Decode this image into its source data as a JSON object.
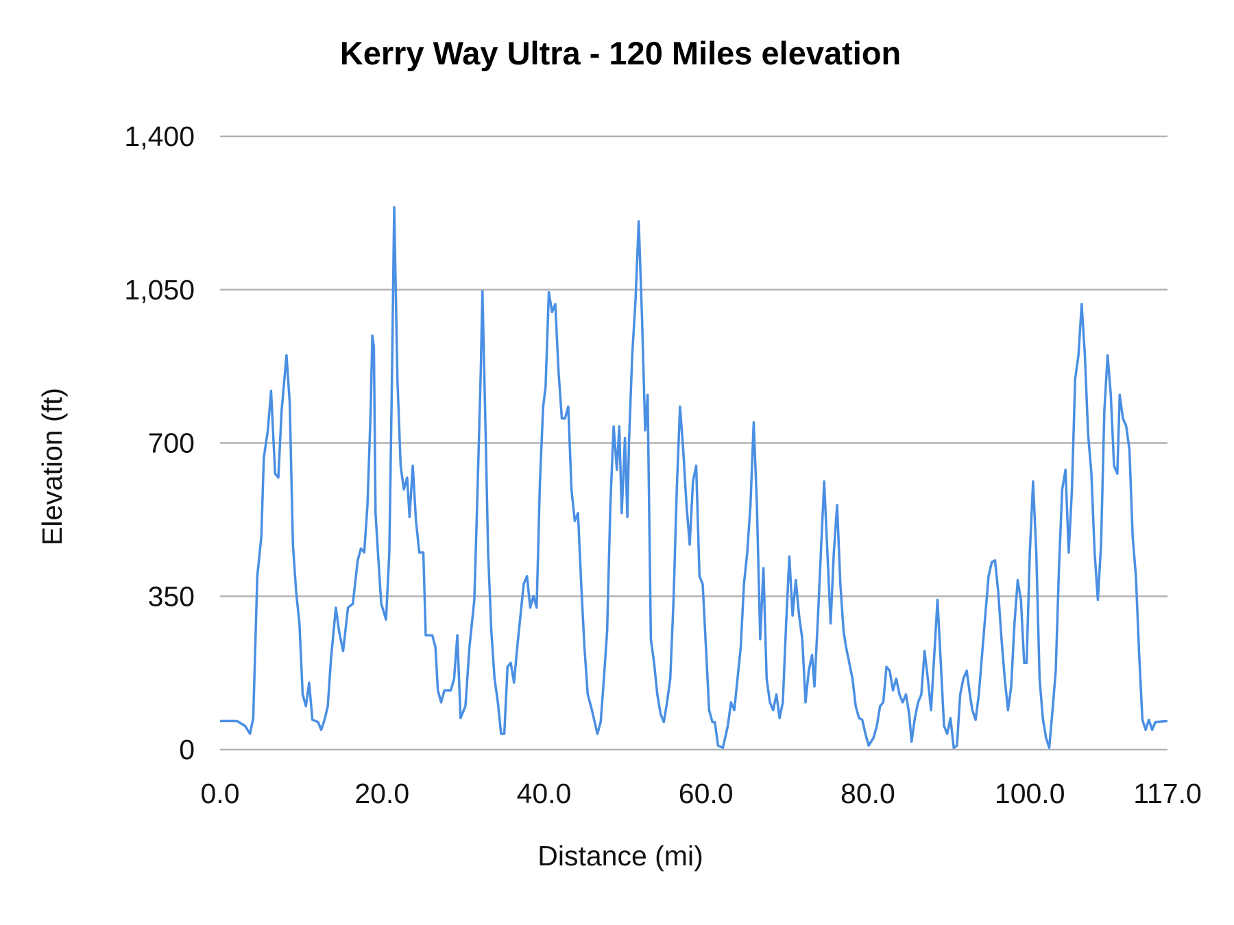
{
  "chart_data": {
    "type": "line",
    "title": "Kerry Way Ultra - 120 Miles elevation",
    "xlabel": "Distance (mi)",
    "ylabel": "Elevation (ft)",
    "xlim": [
      0,
      117
    ],
    "ylim": [
      0,
      1400
    ],
    "x_ticks": [
      "0.0",
      "20.0",
      "40.0",
      "60.0",
      "80.0",
      "100.0",
      "117.0"
    ],
    "x_tick_values": [
      0,
      20,
      40,
      60,
      80,
      100,
      117
    ],
    "y_ticks": [
      "0",
      "350",
      "700",
      "1,050",
      "1,400"
    ],
    "y_tick_values": [
      0,
      350,
      700,
      1050,
      1400
    ],
    "grid": "horizontal",
    "legend": "none",
    "colors": {
      "line": "#4a8fe3",
      "grid": "#b3b3b3"
    },
    "series": [
      {
        "x": [
          0,
          2.1,
          3.1,
          3.7,
          4.1,
          4.4,
          4.6,
          5.1,
          5.4,
          5.9,
          6.3,
          6.8,
          7.2,
          7.6,
          8.2,
          8.6,
          9.0,
          9.4,
          9.8,
          10.2,
          10.6,
          11.0,
          11.4,
          12.1,
          12.5,
          12.9,
          13.3,
          13.7,
          14.3,
          14.7,
          15.2,
          15.8,
          16.4,
          17.0,
          17.4,
          17.8,
          18.2,
          18.6,
          18.8,
          19.0,
          19.2,
          19.5,
          19.9,
          20.5,
          20.9,
          21.2,
          21.5,
          21.9,
          22.3,
          22.7,
          23.1,
          23.4,
          23.8,
          24.2,
          24.6,
          25.1,
          25.4,
          26.2,
          26.6,
          26.9,
          27.3,
          27.7,
          28.5,
          28.9,
          29.3,
          29.7,
          30.3,
          30.8,
          31.4,
          31.8,
          32.2,
          32.4,
          32.8,
          33.1,
          33.5,
          33.9,
          34.3,
          34.7,
          35.1,
          35.5,
          35.9,
          36.3,
          36.7,
          37.1,
          37.5,
          37.9,
          38.3,
          38.7,
          39.1,
          39.5,
          39.9,
          40.2,
          40.6,
          41.0,
          41.4,
          41.8,
          42.2,
          42.6,
          43.0,
          43.4,
          43.8,
          44.2,
          44.6,
          45.0,
          45.4,
          45.8,
          46.2,
          46.6,
          47.0,
          47.4,
          47.8,
          48.2,
          48.6,
          49.0,
          49.3,
          49.6,
          50.0,
          50.3,
          50.5,
          50.9,
          51.3,
          51.7,
          52.1,
          52.5,
          52.8,
          53.2,
          53.6,
          54.0,
          54.4,
          54.8,
          55.2,
          55.6,
          56.0,
          56.4,
          56.8,
          57.2,
          57.6,
          58.0,
          58.4,
          58.8,
          59.2,
          59.6,
          60.0,
          60.4,
          60.8,
          61.1,
          61.5,
          62.1,
          62.7,
          63.1,
          63.5,
          63.9,
          64.3,
          64.7,
          65.1,
          65.5,
          65.9,
          66.3,
          66.7,
          67.1,
          67.5,
          67.9,
          68.3,
          68.7,
          69.1,
          69.5,
          69.9,
          70.3,
          70.7,
          71.1,
          71.5,
          71.9,
          72.3,
          72.7,
          73.1,
          73.4,
          73.8,
          74.2,
          74.6,
          75.0,
          75.4,
          75.8,
          76.2,
          76.6,
          77.0,
          77.3,
          77.7,
          78.1,
          78.5,
          78.9,
          79.3,
          79.7,
          80.1,
          80.7,
          81.1,
          81.5,
          81.9,
          82.3,
          82.7,
          83.1,
          83.5,
          83.9,
          84.3,
          84.7,
          85.1,
          85.4,
          85.8,
          86.2,
          86.6,
          87.0,
          87.4,
          87.8,
          88.2,
          88.6,
          89.0,
          89.4,
          89.8,
          90.2,
          90.6,
          91.0,
          91.4,
          91.8,
          92.2,
          92.6,
          92.9,
          93.3,
          93.7,
          94.1,
          94.5,
          94.9,
          95.3,
          95.7,
          96.1,
          96.5,
          96.9,
          97.3,
          97.7,
          98.1,
          98.5,
          98.9,
          99.3,
          99.6,
          100.0,
          100.4,
          100.8,
          101.2,
          101.6,
          102.0,
          102.4,
          102.8,
          103.2,
          103.6,
          104.0,
          104.4,
          104.8,
          105.2,
          105.6,
          106.0,
          106.4,
          106.8,
          107.2,
          107.6,
          108.0,
          108.4,
          108.8,
          109.2,
          109.6,
          110.0,
          110.4,
          110.8,
          111.1,
          111.5,
          111.9,
          112.3,
          112.7,
          113.1,
          113.5,
          113.9,
          114.3,
          114.7,
          115.1,
          115.5,
          117.0
        ],
        "y": [
          65,
          65,
          54,
          36,
          72,
          270,
          396,
          486,
          666,
          729,
          819,
          630,
          621,
          774,
          900,
          792,
          468,
          360,
          288,
          126,
          99,
          153,
          68,
          63,
          45,
          68,
          99,
          207,
          324,
          270,
          225,
          324,
          333,
          432,
          459,
          450,
          558,
          774,
          945,
          918,
          540,
          450,
          333,
          297,
          450,
          810,
          1238,
          846,
          648,
          594,
          621,
          531,
          648,
          522,
          450,
          450,
          261,
          261,
          234,
          135,
          108,
          135,
          135,
          162,
          261,
          72,
          99,
          234,
          342,
          594,
          864,
          1047,
          720,
          450,
          270,
          162,
          108,
          36,
          36,
          189,
          198,
          153,
          234,
          306,
          378,
          396,
          324,
          351,
          324,
          612,
          783,
          828,
          1044,
          999,
          1017,
          864,
          756,
          756,
          783,
          594,
          522,
          540,
          378,
          234,
          126,
          99,
          68,
          36,
          63,
          162,
          270,
          558,
          738,
          639,
          738,
          540,
          711,
          531,
          702,
          900,
          1026,
          1206,
          990,
          729,
          810,
          252,
          198,
          126,
          81,
          63,
          108,
          162,
          342,
          594,
          783,
          684,
          558,
          468,
          612,
          648,
          396,
          378,
          234,
          90,
          63,
          63,
          9,
          4,
          54,
          108,
          90,
          162,
          234,
          378,
          450,
          558,
          747,
          558,
          252,
          414,
          162,
          108,
          90,
          126,
          72,
          108,
          288,
          441,
          306,
          387,
          306,
          252,
          108,
          180,
          216,
          144,
          288,
          450,
          612,
          450,
          288,
          450,
          558,
          378,
          270,
          234,
          198,
          162,
          99,
          72,
          68,
          36,
          9,
          27,
          54,
          99,
          108,
          189,
          180,
          135,
          162,
          126,
          108,
          126,
          81,
          18,
          72,
          108,
          126,
          225,
          162,
          90,
          216,
          342,
          198,
          54,
          36,
          72,
          4,
          9,
          126,
          162,
          180,
          126,
          90,
          68,
          126,
          216,
          306,
          396,
          428,
          432,
          360,
          252,
          162,
          90,
          144,
          288,
          387,
          342,
          198,
          198,
          450,
          612,
          450,
          162,
          72,
          27,
          4,
          90,
          180,
          414,
          594,
          639,
          450,
          594,
          846,
          900,
          1017,
          900,
          720,
          630,
          450,
          342,
          468,
          774,
          900,
          810,
          648,
          630,
          810,
          756,
          738,
          684,
          486,
          396,
          216,
          68,
          45,
          68,
          45,
          63,
          65
        ]
      }
    ]
  }
}
